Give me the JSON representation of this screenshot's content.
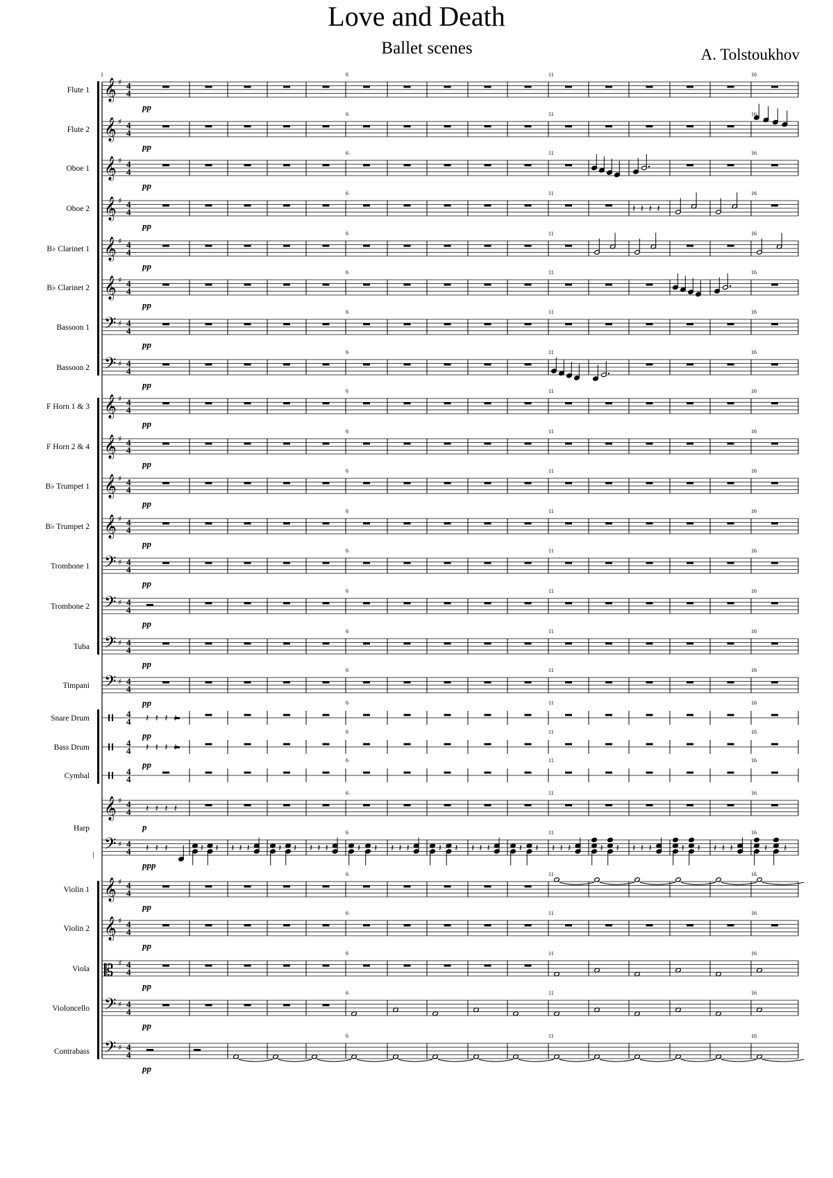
{
  "header": {
    "title": "Love and Death",
    "subtitle": "Ballet scenes",
    "composer": "A. Tolstoukhov"
  },
  "score": {
    "key_signature": "G major (1 sharp)",
    "time_signature": "4/4",
    "measure_count": 16,
    "measure_numbers": [
      "1",
      "6",
      "11",
      "16"
    ],
    "staves": [
      {
        "name": "Flute 1",
        "clef": "treble",
        "dynamic": "pp",
        "measures": [
          "rest",
          "rest",
          "rest",
          "rest",
          "rest",
          "rest",
          "rest",
          "rest",
          "rest",
          "rest",
          "rest",
          "rest",
          "rest",
          "rest",
          "rest",
          "rest"
        ]
      },
      {
        "name": "Flute 2",
        "clef": "treble",
        "dynamic": "pp",
        "measures": [
          "rest",
          "rest",
          "rest",
          "rest",
          "rest",
          "rest",
          "rest",
          "rest",
          "rest",
          "rest",
          "rest",
          "rest",
          "rest",
          "rest",
          "rest",
          "quarters-high"
        ]
      },
      {
        "name": "Oboe 1",
        "clef": "treble",
        "dynamic": "pp",
        "measures": [
          "rest",
          "rest",
          "rest",
          "rest",
          "rest",
          "rest",
          "rest",
          "rest",
          "rest",
          "rest",
          "rest",
          "quarters",
          "dotted-half",
          "rest",
          "rest",
          "rest"
        ]
      },
      {
        "name": "Oboe 2",
        "clef": "treble",
        "dynamic": "pp",
        "measures": [
          "rest",
          "rest",
          "rest",
          "rest",
          "rest",
          "rest",
          "rest",
          "rest",
          "rest",
          "rest",
          "rest",
          "rest",
          "quarter-rests",
          "halves",
          "halves",
          "rest"
        ]
      },
      {
        "name": "B♭ Clarinet 1",
        "clef": "treble",
        "dynamic": "pp",
        "measures": [
          "rest",
          "rest",
          "rest",
          "rest",
          "rest",
          "rest",
          "rest",
          "rest",
          "rest",
          "rest",
          "rest",
          "halves",
          "halves",
          "rest",
          "rest",
          "halves"
        ]
      },
      {
        "name": "B♭ Clarinet 2",
        "clef": "treble",
        "dynamic": "pp",
        "measures": [
          "rest",
          "rest",
          "rest",
          "rest",
          "rest",
          "rest",
          "rest",
          "rest",
          "rest",
          "rest",
          "rest",
          "rest",
          "rest",
          "quarters",
          "dotted-half",
          "rest"
        ]
      },
      {
        "name": "Bassoon 1",
        "clef": "bass",
        "dynamic": "pp",
        "measures": [
          "rest",
          "rest",
          "rest",
          "rest",
          "rest",
          "rest",
          "rest",
          "rest",
          "rest",
          "rest",
          "rest",
          "rest",
          "rest",
          "rest",
          "rest",
          "rest"
        ]
      },
      {
        "name": "Bassoon 2",
        "clef": "bass",
        "dynamic": "pp",
        "measures": [
          "rest",
          "rest",
          "rest",
          "rest",
          "rest",
          "rest",
          "rest",
          "rest",
          "rest",
          "rest",
          "quarters-low",
          "dotted-half-low",
          "rest",
          "rest",
          "rest",
          "rest"
        ]
      },
      {
        "name": "F Horn 1 & 3",
        "clef": "treble",
        "dynamic": "pp",
        "measures": [
          "rest",
          "rest",
          "rest",
          "rest",
          "rest",
          "rest",
          "rest",
          "rest",
          "rest",
          "rest",
          "rest",
          "rest",
          "rest",
          "rest",
          "rest",
          "rest"
        ]
      },
      {
        "name": "F Horn 2 & 4",
        "clef": "treble",
        "dynamic": "pp",
        "measures": [
          "rest",
          "rest",
          "rest",
          "rest",
          "rest",
          "rest",
          "rest",
          "rest",
          "rest",
          "rest",
          "rest",
          "rest",
          "rest",
          "rest",
          "rest",
          "rest"
        ]
      },
      {
        "name": "B♭ Trumpet 1",
        "clef": "treble",
        "dynamic": "pp",
        "measures": [
          "rest",
          "rest",
          "rest",
          "rest",
          "rest",
          "rest",
          "rest",
          "rest",
          "rest",
          "rest",
          "rest",
          "rest",
          "rest",
          "rest",
          "rest",
          "rest"
        ]
      },
      {
        "name": "B♭ Trumpet 2",
        "clef": "treble",
        "dynamic": "pp",
        "measures": [
          "rest",
          "rest",
          "rest",
          "rest",
          "rest",
          "rest",
          "rest",
          "rest",
          "rest",
          "rest",
          "rest",
          "rest",
          "rest",
          "rest",
          "rest",
          "rest"
        ]
      },
      {
        "name": "Trombone 1",
        "clef": "bass",
        "dynamic": "pp",
        "measures": [
          "rest",
          "rest",
          "rest",
          "rest",
          "rest",
          "rest",
          "rest",
          "rest",
          "rest",
          "rest",
          "rest",
          "rest",
          "rest",
          "rest",
          "rest",
          "rest"
        ]
      },
      {
        "name": "Trombone 2",
        "clef": "bass",
        "dynamic": "pp",
        "measures": [
          "half-rest",
          "rest",
          "rest",
          "rest",
          "rest",
          "rest",
          "rest",
          "rest",
          "rest",
          "rest",
          "rest",
          "rest",
          "rest",
          "rest",
          "rest",
          "rest"
        ]
      },
      {
        "name": "Tuba",
        "clef": "bass",
        "dynamic": "pp",
        "measures": [
          "rest",
          "rest",
          "rest",
          "rest",
          "rest",
          "rest",
          "rest",
          "rest",
          "rest",
          "rest",
          "rest",
          "rest",
          "rest",
          "rest",
          "rest",
          "rest"
        ]
      },
      {
        "name": "Timpani",
        "clef": "bass",
        "dynamic": "pp",
        "measures": [
          "rest",
          "rest",
          "rest",
          "rest",
          "rest",
          "rest",
          "rest",
          "rest",
          "rest",
          "rest",
          "rest",
          "rest",
          "rest",
          "rest",
          "rest",
          "rest"
        ]
      },
      {
        "name": "Snare Drum",
        "clef": "percussion",
        "dynamic": "pp",
        "measures": [
          "perc-rests",
          "rest",
          "rest",
          "rest",
          "rest",
          "rest",
          "rest",
          "rest",
          "rest",
          "rest",
          "rest",
          "rest",
          "rest",
          "rest",
          "rest",
          "rest"
        ]
      },
      {
        "name": "Bass Drum",
        "clef": "percussion",
        "dynamic": "pp",
        "measures": [
          "perc-rests",
          "rest",
          "rest",
          "rest",
          "rest",
          "rest",
          "rest",
          "rest",
          "rest",
          "rest",
          "rest",
          "rest",
          "rest",
          "rest",
          "rest",
          "rest"
        ]
      },
      {
        "name": "Cymbal",
        "clef": "percussion",
        "dynamic": "",
        "measures": [
          "rest",
          "rest",
          "rest",
          "rest",
          "rest",
          "rest",
          "rest",
          "rest",
          "rest",
          "rest",
          "rest",
          "rest",
          "rest",
          "rest",
          "rest",
          "rest"
        ]
      },
      {
        "name": "Harp",
        "clef": "treble",
        "dynamic": "p",
        "measures": [
          "quarter-rests",
          "rest",
          "rest",
          "rest",
          "rest",
          "rest",
          "rest",
          "rest",
          "rest",
          "rest",
          "rest",
          "rest",
          "rest",
          "rest",
          "rest",
          "rest"
        ]
      },
      {
        "name": "",
        "clef": "bass",
        "dynamic": "ppp",
        "measures": [
          "harp-pickup",
          "chords-on",
          "chords-off",
          "chords-on",
          "chords-off",
          "chords-on",
          "chords-off",
          "chords-on",
          "chords-off",
          "chords-on",
          "chords-off",
          "chords-full",
          "chords-off",
          "chords-full",
          "chords-off",
          "chords-full"
        ]
      },
      {
        "name": "Violin 1",
        "clef": "treble",
        "dynamic": "pp",
        "measures": [
          "rest",
          "rest",
          "rest",
          "rest",
          "rest",
          "rest",
          "rest",
          "rest",
          "rest",
          "rest",
          "whole-tied",
          "whole-tied",
          "whole-tied",
          "whole-tied",
          "whole-tied",
          "whole-tied"
        ]
      },
      {
        "name": "Violin 2",
        "clef": "treble",
        "dynamic": "pp",
        "measures": [
          "rest",
          "rest",
          "rest",
          "rest",
          "rest",
          "rest",
          "rest",
          "rest",
          "rest",
          "rest",
          "rest",
          "rest",
          "rest",
          "rest",
          "rest",
          "rest"
        ]
      },
      {
        "name": "Viola",
        "clef": "alto",
        "dynamic": "pp",
        "measures": [
          "rest",
          "rest",
          "rest",
          "rest",
          "rest",
          "rest",
          "rest",
          "rest",
          "rest",
          "rest",
          "whole",
          "whole-up",
          "whole",
          "whole-up",
          "whole",
          "whole-up"
        ]
      },
      {
        "name": "Violoncello",
        "clef": "bass",
        "dynamic": "pp",
        "measures": [
          "rest",
          "rest",
          "rest",
          "rest",
          "rest",
          "whole",
          "whole-up",
          "whole",
          "whole-up",
          "whole",
          "whole",
          "whole-up",
          "whole",
          "whole-up",
          "whole",
          "whole-up"
        ]
      },
      {
        "name": "Contrabass",
        "clef": "bass",
        "dynamic": "pp",
        "measures": [
          "half-rest",
          "half-rest",
          "whole-tied",
          "whole-tied",
          "whole-tied",
          "whole-tied",
          "whole-tied",
          "whole-tied",
          "whole-tied",
          "whole-tied",
          "whole-tied",
          "whole-tied",
          "whole-tied",
          "whole-tied",
          "whole-tied",
          "whole-tied"
        ]
      }
    ]
  }
}
